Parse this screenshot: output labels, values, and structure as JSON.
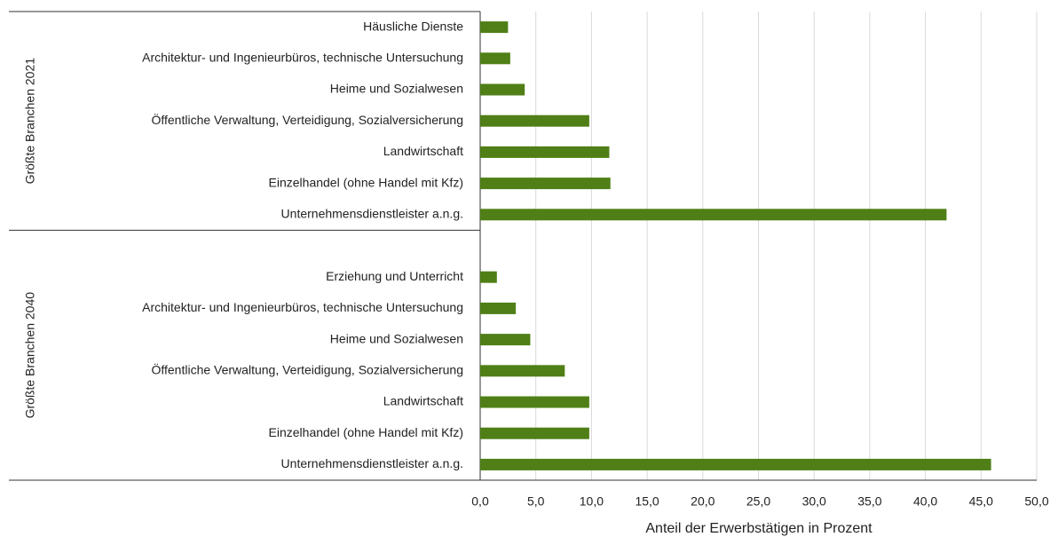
{
  "chart_data": {
    "type": "bar",
    "orientation": "horizontal",
    "color": "#4f7f16",
    "grid": true,
    "xlabel": "Anteil der Erwerbstätigen in Prozent",
    "xlim": [
      0,
      50
    ],
    "xticks": [
      {
        "value": 0,
        "label": "0,0"
      },
      {
        "value": 5,
        "label": "5,0"
      },
      {
        "value": 10,
        "label": "10,0"
      },
      {
        "value": 15,
        "label": "15,0"
      },
      {
        "value": 20,
        "label": "20,0"
      },
      {
        "value": 25,
        "label": "25,0"
      },
      {
        "value": 30,
        "label": "30,0"
      },
      {
        "value": 35,
        "label": "35,0"
      },
      {
        "value": 40,
        "label": "40,0"
      },
      {
        "value": 45,
        "label": "45,0"
      },
      {
        "value": 50,
        "label": "50,0"
      }
    ],
    "groups": [
      {
        "name": "Größte Branchen 2021",
        "categories": [
          "Häusliche Dienste",
          "Architektur- und Ingenieurbüros, technische Untersuchung",
          "Heime und Sozialwesen",
          "Öffentliche Verwaltung, Verteidigung, Sozialversicherung",
          "Landwirtschaft",
          "Einzelhandel (ohne Handel mit Kfz)",
          "Unternehmensdienstleister a.n.g."
        ],
        "values": [
          2.5,
          2.7,
          4.0,
          9.8,
          11.6,
          11.7,
          41.9
        ]
      },
      {
        "name": "Größte Branchen 2040",
        "categories": [
          "Erziehung und Unterricht",
          "Architektur- und Ingenieurbüros, technische Untersuchung",
          "Heime und Sozialwesen",
          "Öffentliche Verwaltung, Verteidigung, Sozialversicherung",
          "Landwirtschaft",
          "Einzelhandel (ohne Handel mit Kfz)",
          "Unternehmensdienstleister a.n.g."
        ],
        "values": [
          1.5,
          3.2,
          4.5,
          7.6,
          9.8,
          9.8,
          45.9
        ]
      }
    ]
  }
}
